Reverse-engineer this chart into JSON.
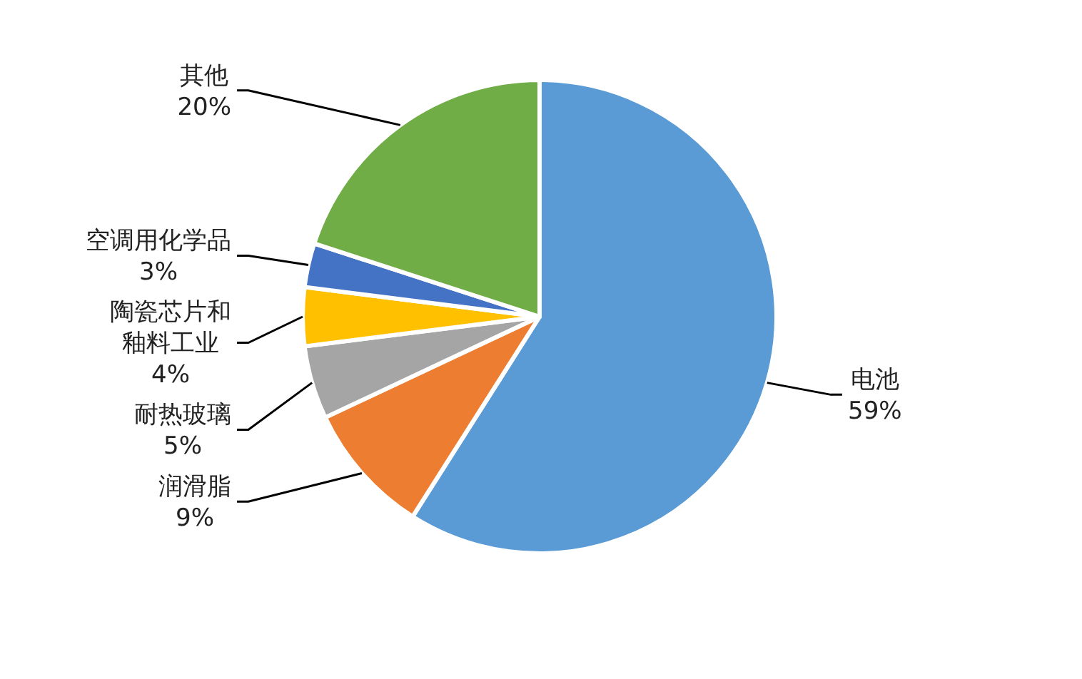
{
  "chart_data": {
    "type": "pie",
    "categories": [
      "电池",
      "润滑脂",
      "耐热玻璃",
      "陶瓷芯片和釉料工业",
      "空调用化学品",
      "其他"
    ],
    "values": [
      59,
      9,
      5,
      4,
      3,
      20
    ],
    "colors": [
      "#5b9bd5",
      "#ed7d31",
      "#a5a5a5",
      "#ffc000",
      "#4472c4",
      "#70ad47"
    ],
    "value_labels": [
      "59%",
      "9%",
      "5%",
      "4%",
      "3%",
      "20%"
    ]
  }
}
